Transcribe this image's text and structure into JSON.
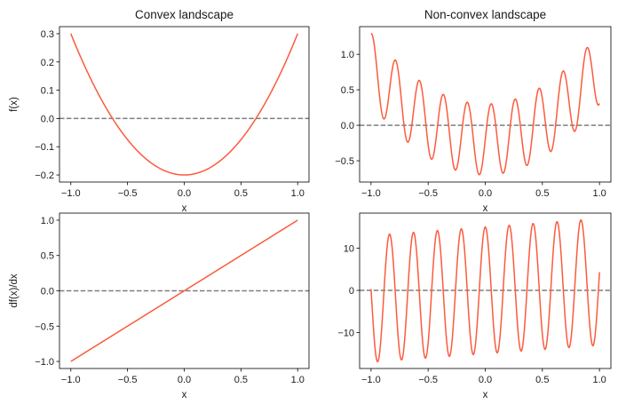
{
  "chart_data": [
    {
      "id": "convex-f",
      "type": "line",
      "title": "Convex landscape",
      "xlabel": "x",
      "ylabel": "f(x)",
      "xlim": [
        -1.1,
        1.1
      ],
      "ylim": [
        -0.225,
        0.325
      ],
      "xticks": [
        -1.0,
        -0.5,
        0.0,
        0.5,
        1.0
      ],
      "xtick_labels": [
        "−1.0",
        "−0.5",
        "0.0",
        "0.5",
        "1.0"
      ],
      "yticks": [
        -0.2,
        -0.1,
        0.0,
        0.1,
        0.2,
        0.3
      ],
      "ytick_labels": [
        "−0.2",
        "−0.1",
        "0.0",
        "0.1",
        "0.2",
        "0.3"
      ],
      "series": [
        {
          "name": "f(x)",
          "expr": "0.5*x*x - 0.2",
          "x_range": [
            -1,
            1
          ],
          "samples": 400,
          "color": "#fc5a3d"
        }
      ],
      "hline": {
        "y": 0,
        "color": "#7f7f7f",
        "style": "dashed"
      }
    },
    {
      "id": "nonconvex-f",
      "type": "line",
      "title": "Non-convex landscape",
      "xlabel": "x",
      "ylabel": "",
      "xlim": [
        -1.1,
        1.1
      ],
      "ylim": [
        -0.8,
        1.39
      ],
      "xticks": [
        -1.0,
        -0.5,
        0.0,
        0.5,
        1.0
      ],
      "xtick_labels": [
        "−1.0",
        "−0.5",
        "0.0",
        "0.5",
        "1.0"
      ],
      "yticks": [
        -0.5,
        0.0,
        0.5,
        1.0
      ],
      "ytick_labels": [
        "−0.5",
        "0.0",
        "0.5",
        "1.0"
      ],
      "series": [
        {
          "name": "f(x)",
          "expr": "x*x - 0.2 + 0.5*Math.sin(30*x)",
          "x_range": [
            -1,
            1
          ],
          "samples": 600,
          "color": "#fc5a3d"
        }
      ],
      "hline": {
        "y": 0,
        "color": "#7f7f7f",
        "style": "dashed"
      }
    },
    {
      "id": "convex-df",
      "type": "line",
      "title": "",
      "xlabel": "x",
      "ylabel": "df(x)/dx",
      "xlim": [
        -1.1,
        1.1
      ],
      "ylim": [
        -1.1,
        1.1
      ],
      "xticks": [
        -1.0,
        -0.5,
        0.0,
        0.5,
        1.0
      ],
      "xtick_labels": [
        "−1.0",
        "−0.5",
        "0.0",
        "0.5",
        "1.0"
      ],
      "yticks": [
        -1.0,
        -0.5,
        0.0,
        0.5,
        1.0
      ],
      "ytick_labels": [
        "−1.0",
        "−0.5",
        "0.0",
        "0.5",
        "1.0"
      ],
      "series": [
        {
          "name": "df(x)/dx",
          "expr": "x",
          "x_range": [
            -1,
            1
          ],
          "samples": 400,
          "color": "#fc5a3d"
        }
      ],
      "hline": {
        "y": 0,
        "color": "#7f7f7f",
        "style": "dashed"
      }
    },
    {
      "id": "nonconvex-df",
      "type": "line",
      "title": "",
      "xlabel": "x",
      "ylabel": "",
      "xlim": [
        -1.1,
        1.1
      ],
      "ylim": [
        -18.5,
        18.3
      ],
      "xticks": [
        -1.0,
        -0.5,
        0.0,
        0.5,
        1.0
      ],
      "xtick_labels": [
        "−1.0",
        "−0.5",
        "0.0",
        "0.5",
        "1.0"
      ],
      "yticks": [
        -10,
        0,
        10
      ],
      "ytick_labels": [
        "−10",
        "0",
        "10"
      ],
      "series": [
        {
          "name": "df(x)/dx",
          "expr": "2*x + 15*Math.cos(30*x)",
          "x_range": [
            -1,
            1
          ],
          "samples": 600,
          "color": "#fc5a3d"
        }
      ],
      "hline": {
        "y": 0,
        "color": "#7f7f7f",
        "style": "dashed"
      }
    }
  ]
}
